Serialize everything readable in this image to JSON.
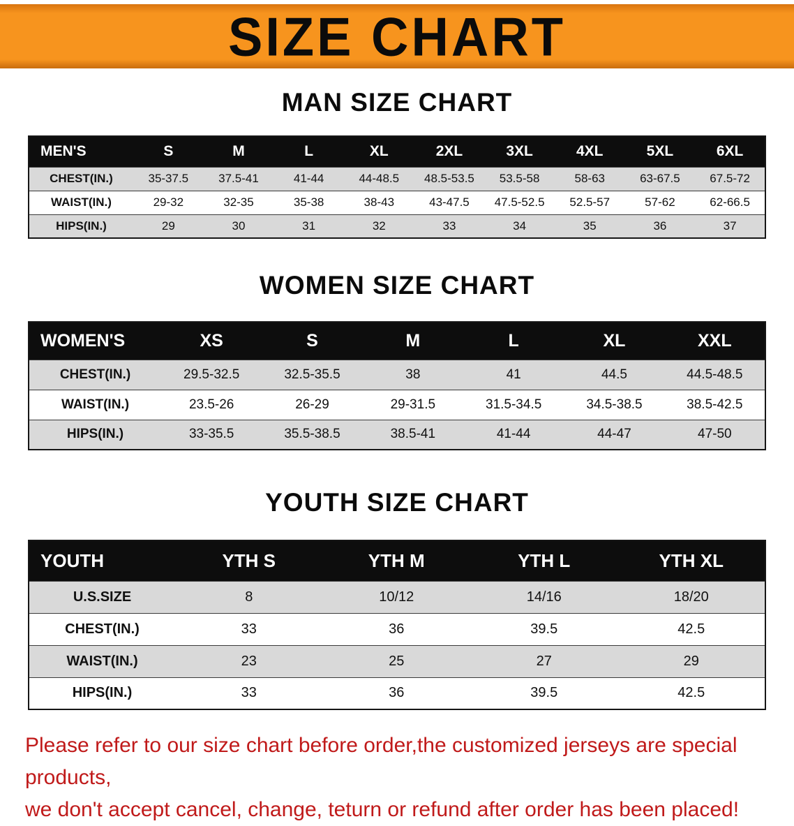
{
  "banner": {
    "title": "SIZE CHART"
  },
  "colors": {
    "banner_bg": "#f7941e",
    "header_bg": "#0d0d0d",
    "row_shade": "#d9d9d9",
    "disclaimer_red": "#c01a1a"
  },
  "men": {
    "heading": "MAN SIZE CHART",
    "table": {
      "header": [
        "MEN'S",
        "S",
        "M",
        "L",
        "XL",
        "2XL",
        "3XL",
        "4XL",
        "5XL",
        "6XL"
      ],
      "rows": [
        {
          "label": "CHEST(IN.)",
          "values": [
            "35-37.5",
            "37.5-41",
            "41-44",
            "44-48.5",
            "48.5-53.5",
            "53.5-58",
            "58-63",
            "63-67.5",
            "67.5-72"
          ]
        },
        {
          "label": "WAIST(IN.)",
          "values": [
            "29-32",
            "32-35",
            "35-38",
            "38-43",
            "43-47.5",
            "47.5-52.5",
            "52.5-57",
            "57-62",
            "62-66.5"
          ]
        },
        {
          "label": "HIPS(IN.)",
          "values": [
            "29",
            "30",
            "31",
            "32",
            "33",
            "34",
            "35",
            "36",
            "37"
          ]
        }
      ]
    }
  },
  "women": {
    "heading": "WOMEN SIZE CHART",
    "table": {
      "header": [
        "WOMEN'S",
        "XS",
        "S",
        "M",
        "L",
        "XL",
        "XXL"
      ],
      "rows": [
        {
          "label": "CHEST(IN.)",
          "values": [
            "29.5-32.5",
            "32.5-35.5",
            "38",
            "41",
            "44.5",
            "44.5-48.5"
          ]
        },
        {
          "label": "WAIST(IN.)",
          "values": [
            "23.5-26",
            "26-29",
            "29-31.5",
            "31.5-34.5",
            "34.5-38.5",
            "38.5-42.5"
          ]
        },
        {
          "label": "HIPS(IN.)",
          "values": [
            "33-35.5",
            "35.5-38.5",
            "38.5-41",
            "41-44",
            "44-47",
            "47-50"
          ]
        }
      ]
    }
  },
  "youth": {
    "heading": "YOUTH SIZE CHART",
    "table": {
      "header": [
        "YOUTH",
        "YTH S",
        "YTH M",
        "YTH L",
        "YTH XL"
      ],
      "rows": [
        {
          "label": "U.S.SIZE",
          "values": [
            "8",
            "10/12",
            "14/16",
            "18/20"
          ]
        },
        {
          "label": "CHEST(IN.)",
          "values": [
            "33",
            "36",
            "39.5",
            "42.5"
          ]
        },
        {
          "label": "WAIST(IN.)",
          "values": [
            "23",
            "25",
            "27",
            "29"
          ]
        },
        {
          "label": "HIPS(IN.)",
          "values": [
            "33",
            "36",
            "39.5",
            "42.5"
          ]
        }
      ]
    }
  },
  "disclaimer": {
    "line1": "Please refer to our size chart before order,the customized jerseys are special products,",
    "line2": "we don't accept cancel, change, teturn or refund after order has been placed!"
  }
}
